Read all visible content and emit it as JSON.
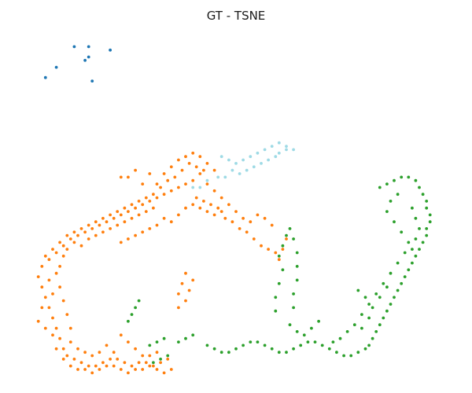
{
  "chart_data": {
    "type": "scatter",
    "title": "GT - TSNE",
    "xlabel": "",
    "ylabel": "",
    "axes_visible": false,
    "grid": false,
    "legend": "none",
    "series": [
      {
        "color": "#1f77b4",
        "points": [
          [
            -48,
            56
          ],
          [
            -43,
            62
          ],
          [
            -39,
            62
          ],
          [
            -33,
            61
          ],
          [
            -39,
            59
          ],
          [
            -40,
            58
          ],
          [
            -51,
            53
          ],
          [
            -38,
            52
          ]
        ]
      },
      {
        "color": "#9edae5",
        "points": [
          [
            1,
            26
          ],
          [
            3,
            25
          ],
          [
            5,
            26
          ],
          [
            7,
            27
          ],
          [
            9,
            28
          ],
          [
            11,
            29
          ],
          [
            13,
            30
          ],
          [
            14,
            31
          ],
          [
            16,
            32
          ],
          [
            18,
            32
          ],
          [
            -1,
            24
          ],
          [
            -3,
            24
          ],
          [
            2,
            28
          ],
          [
            4,
            29
          ],
          [
            6,
            30
          ],
          [
            8,
            31
          ],
          [
            10,
            32
          ],
          [
            12,
            33
          ],
          [
            14,
            34
          ],
          [
            16,
            33
          ],
          [
            -6,
            23
          ],
          [
            -8,
            21
          ],
          [
            -10,
            21
          ],
          [
            0,
            29
          ],
          [
            -2,
            30
          ]
        ]
      },
      {
        "color": "#ff7f0e",
        "points": [
          [
            -26,
            26
          ],
          [
            -28,
            24
          ],
          [
            -30,
            24
          ],
          [
            -22,
            25
          ],
          [
            -24,
            22
          ],
          [
            -20,
            22
          ],
          [
            -18,
            25
          ],
          [
            -16,
            27
          ],
          [
            -14,
            29
          ],
          [
            -12,
            30
          ],
          [
            -10,
            31
          ],
          [
            -8,
            30
          ],
          [
            -6,
            28
          ],
          [
            -4,
            26
          ],
          [
            -7,
            26
          ],
          [
            -9,
            27
          ],
          [
            -11,
            28
          ],
          [
            -13,
            26
          ],
          [
            -15,
            24
          ],
          [
            -17,
            23
          ],
          [
            -19,
            21
          ],
          [
            -21,
            19
          ],
          [
            -23,
            18
          ],
          [
            -25,
            17
          ],
          [
            -27,
            16
          ],
          [
            -29,
            15
          ],
          [
            -31,
            14
          ],
          [
            -33,
            13
          ],
          [
            -35,
            12
          ],
          [
            -37,
            11
          ],
          [
            -39,
            10
          ],
          [
            -41,
            9
          ],
          [
            -43,
            8
          ],
          [
            -45,
            7
          ],
          [
            -47,
            5
          ],
          [
            -49,
            3
          ],
          [
            -51,
            1
          ],
          [
            -52,
            -2
          ],
          [
            -53,
            -5
          ],
          [
            -52,
            -8
          ],
          [
            -51,
            -11
          ],
          [
            -50,
            -14
          ],
          [
            -49,
            -17
          ],
          [
            -48,
            -20
          ],
          [
            -47,
            -23
          ],
          [
            -46,
            -26
          ],
          [
            -45,
            -28
          ],
          [
            -43,
            -29
          ],
          [
            -41,
            -30
          ],
          [
            -39,
            -31
          ],
          [
            -37,
            -31
          ],
          [
            -35,
            -30
          ],
          [
            -33,
            -29
          ],
          [
            -31,
            -29
          ],
          [
            -29,
            -30
          ],
          [
            -27,
            -31
          ],
          [
            -25,
            -30
          ],
          [
            -23,
            -30
          ],
          [
            -21,
            -31
          ],
          [
            -19,
            -30
          ],
          [
            -17,
            -29
          ],
          [
            -48,
            -26
          ],
          [
            -46,
            -29
          ],
          [
            -44,
            -31
          ],
          [
            -42,
            -32
          ],
          [
            -40,
            -32
          ],
          [
            -38,
            -33
          ],
          [
            -36,
            -32
          ],
          [
            -34,
            -31
          ],
          [
            -32,
            -31
          ],
          [
            -30,
            -32
          ],
          [
            -28,
            -33
          ],
          [
            -26,
            -32
          ],
          [
            -24,
            -32
          ],
          [
            -22,
            -31
          ],
          [
            -20,
            -32
          ],
          [
            -18,
            -33
          ],
          [
            -16,
            -32
          ],
          [
            -44,
            -24
          ],
          [
            -42,
            -26
          ],
          [
            -40,
            -27
          ],
          [
            -38,
            -28
          ],
          [
            -36,
            -27
          ],
          [
            -50,
            0
          ],
          [
            -48,
            2
          ],
          [
            -46,
            4
          ],
          [
            -44,
            6
          ],
          [
            -42,
            7
          ],
          [
            -40,
            8
          ],
          [
            -38,
            9
          ],
          [
            -36,
            10
          ],
          [
            -34,
            11
          ],
          [
            -32,
            12
          ],
          [
            -30,
            13
          ],
          [
            -28,
            14
          ],
          [
            -26,
            15
          ],
          [
            -24,
            16
          ],
          [
            -22,
            17
          ],
          [
            -20,
            18
          ],
          [
            -18,
            19
          ],
          [
            -16,
            20
          ],
          [
            -14,
            21
          ],
          [
            -12,
            22
          ],
          [
            -48,
            -4
          ],
          [
            -47,
            -8
          ],
          [
            -46,
            -12
          ],
          [
            -45,
            -16
          ],
          [
            -44,
            -20
          ],
          [
            -49,
            -10
          ],
          [
            -50,
            -6
          ],
          [
            -47,
            -2
          ],
          [
            -46,
            1
          ],
          [
            -45,
            3
          ],
          [
            -43,
            5
          ],
          [
            -41,
            4
          ],
          [
            -39,
            6
          ],
          [
            -37,
            7
          ],
          [
            -35,
            8
          ],
          [
            -33,
            9
          ],
          [
            -31,
            10
          ],
          [
            -29,
            11
          ],
          [
            -27,
            12
          ],
          [
            -25,
            13
          ],
          [
            -23,
            14
          ],
          [
            -21,
            15
          ],
          [
            -10,
            23
          ],
          [
            -8,
            25
          ],
          [
            -6,
            22
          ],
          [
            -4,
            20
          ],
          [
            -2,
            18
          ],
          [
            0,
            16
          ],
          [
            2,
            14
          ],
          [
            -2,
            14
          ],
          [
            -4,
            13
          ],
          [
            -6,
            14
          ],
          [
            -8,
            15
          ],
          [
            -10,
            16
          ],
          [
            4,
            12
          ],
          [
            6,
            11
          ],
          [
            8,
            13
          ],
          [
            10,
            12
          ],
          [
            12,
            10
          ],
          [
            -12,
            -4
          ],
          [
            -13,
            -7
          ],
          [
            -14,
            -10
          ],
          [
            -11,
            -9
          ],
          [
            -10,
            -6
          ],
          [
            -12,
            -12
          ],
          [
            -14,
            -14
          ],
          [
            -30,
            -22
          ],
          [
            -28,
            -24
          ],
          [
            -26,
            -26
          ],
          [
            -24,
            -28
          ],
          [
            -22,
            -28
          ],
          [
            -20,
            -27
          ],
          [
            -34,
            -25
          ],
          [
            -32,
            -27
          ],
          [
            -9,
            18
          ],
          [
            -7,
            17
          ],
          [
            -5,
            16
          ],
          [
            -3,
            15
          ],
          [
            -1,
            12
          ],
          [
            1,
            11
          ],
          [
            3,
            9
          ],
          [
            5,
            8
          ],
          [
            7,
            6
          ],
          [
            9,
            4
          ],
          [
            11,
            3
          ],
          [
            13,
            2
          ],
          [
            14,
            0
          ],
          [
            15,
            3
          ],
          [
            16,
            6
          ],
          [
            -16,
            11
          ],
          [
            -14,
            13
          ],
          [
            -12,
            15
          ],
          [
            -18,
            12
          ],
          [
            -20,
            10
          ],
          [
            -22,
            9
          ],
          [
            -24,
            8
          ],
          [
            -26,
            7
          ],
          [
            -28,
            6
          ],
          [
            -30,
            5
          ],
          [
            -52,
            -14
          ],
          [
            -53,
            -18
          ],
          [
            -51,
            -20
          ],
          [
            -49,
            -22
          ]
        ]
      },
      {
        "color": "#2ca02c",
        "points": [
          [
            42,
            21
          ],
          [
            44,
            22
          ],
          [
            46,
            23
          ],
          [
            48,
            24
          ],
          [
            50,
            24
          ],
          [
            52,
            23
          ],
          [
            53,
            21
          ],
          [
            54,
            19
          ],
          [
            55,
            17
          ],
          [
            55,
            15
          ],
          [
            56,
            13
          ],
          [
            56,
            11
          ],
          [
            55,
            9
          ],
          [
            55,
            7
          ],
          [
            54,
            5
          ],
          [
            53,
            3
          ],
          [
            52,
            1
          ],
          [
            51,
            -1
          ],
          [
            50,
            -3
          ],
          [
            49,
            -5
          ],
          [
            48,
            -7
          ],
          [
            47,
            -9
          ],
          [
            46,
            -11
          ],
          [
            45,
            -13
          ],
          [
            44,
            -15
          ],
          [
            43,
            -17
          ],
          [
            42,
            -19
          ],
          [
            41,
            -21
          ],
          [
            40,
            -23
          ],
          [
            39,
            -25
          ],
          [
            38,
            -26
          ],
          [
            36,
            -27
          ],
          [
            34,
            -28
          ],
          [
            32,
            -28
          ],
          [
            30,
            -27
          ],
          [
            28,
            -26
          ],
          [
            26,
            -25
          ],
          [
            24,
            -24
          ],
          [
            22,
            -24
          ],
          [
            20,
            -25
          ],
          [
            18,
            -26
          ],
          [
            16,
            -27
          ],
          [
            14,
            -27
          ],
          [
            12,
            -26
          ],
          [
            10,
            -25
          ],
          [
            8,
            -24
          ],
          [
            6,
            -24
          ],
          [
            4,
            -25
          ],
          [
            2,
            -26
          ],
          [
            0,
            -27
          ],
          [
            -2,
            -27
          ],
          [
            -4,
            -26
          ],
          [
            -6,
            -25
          ],
          [
            47,
            19
          ],
          [
            45,
            17
          ],
          [
            44,
            14
          ],
          [
            46,
            11
          ],
          [
            48,
            8
          ],
          [
            50,
            5
          ],
          [
            49,
            2
          ],
          [
            47,
            -1
          ],
          [
            45,
            -4
          ],
          [
            43,
            -7
          ],
          [
            41,
            -10
          ],
          [
            39,
            -13
          ],
          [
            37,
            -16
          ],
          [
            35,
            -19
          ],
          [
            33,
            -21
          ],
          [
            31,
            -23
          ],
          [
            29,
            -24
          ],
          [
            51,
            15
          ],
          [
            52,
            12
          ],
          [
            53,
            9
          ],
          [
            52,
            6
          ],
          [
            51,
            3
          ],
          [
            25,
            -18
          ],
          [
            23,
            -20
          ],
          [
            21,
            -22
          ],
          [
            19,
            -21
          ],
          [
            17,
            -19
          ],
          [
            18,
            -14
          ],
          [
            18,
            -10
          ],
          [
            19,
            -6
          ],
          [
            19,
            -2
          ],
          [
            19,
            2
          ],
          [
            18,
            6
          ],
          [
            17,
            9
          ],
          [
            16,
            7
          ],
          [
            15,
            4
          ],
          [
            14,
            1
          ],
          [
            15,
            -3
          ],
          [
            14,
            -7
          ],
          [
            13,
            -11
          ],
          [
            13,
            -15
          ],
          [
            -17,
            -28
          ],
          [
            -19,
            -29
          ],
          [
            -21,
            -30
          ],
          [
            -14,
            -24
          ],
          [
            -12,
            -23
          ],
          [
            -10,
            -22
          ],
          [
            -18,
            -23
          ],
          [
            -20,
            -24
          ],
          [
            -22,
            -25
          ],
          [
            -26,
            -14
          ],
          [
            -27,
            -16
          ],
          [
            -28,
            -18
          ],
          [
            -25,
            -12
          ],
          [
            36,
            -9
          ],
          [
            38,
            -11
          ],
          [
            40,
            -14
          ],
          [
            42,
            -11
          ],
          [
            44,
            -8
          ],
          [
            39,
            -17
          ],
          [
            37,
            -20
          ]
        ]
      }
    ]
  }
}
